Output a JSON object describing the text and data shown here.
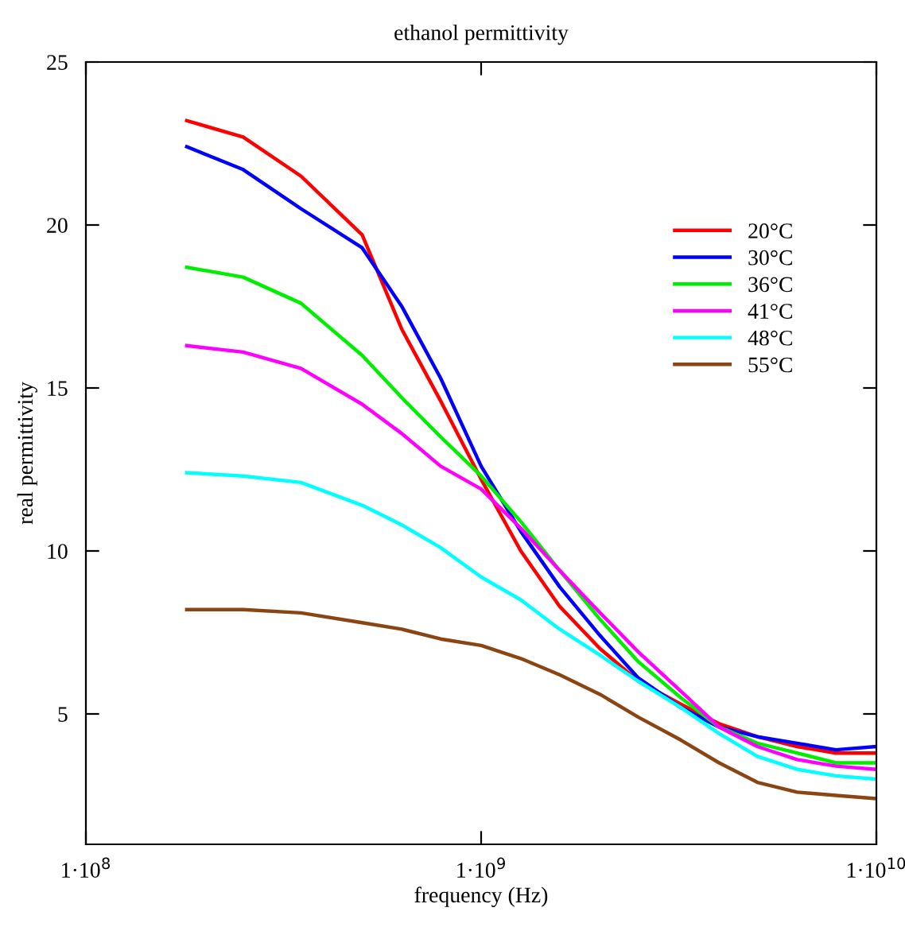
{
  "chart_data": {
    "type": "line",
    "title": "ethanol permittivity",
    "xlabel": "frequency (Hz)",
    "ylabel": "real permittivity",
    "log": "x",
    "xlim": [
      100000000,
      10000000000
    ],
    "ylim": [
      1,
      25
    ],
    "xticks": [
      {
        "value": 100000000,
        "label": "1·10$^{8}$"
      },
      {
        "value": 1000000000,
        "label": "1·10$^{9}$"
      },
      {
        "value": 10000000000,
        "label": "1·10$^{10}$"
      }
    ],
    "yticks": [
      5,
      10,
      15,
      20,
      25
    ],
    "grid": false,
    "legend": "top right",
    "line_style": "solid",
    "x": [
      180000000,
      250000000,
      350000000,
      500000000,
      630000000,
      790000000,
      1000000000,
      1260000000,
      1580000000,
      2000000000,
      2500000000,
      3200000000,
      4000000000,
      5000000000,
      6300000000,
      7900000000,
      10000000000
    ],
    "series": [
      {
        "name": "20°C",
        "color": "#ff0000",
        "values": [
          23.2,
          22.7,
          21.5,
          19.7,
          16.8,
          14.6,
          12.2,
          10.0,
          8.3,
          7.0,
          6.0,
          5.3,
          4.7,
          4.3,
          4.0,
          3.8,
          3.8
        ]
      },
      {
        "name": "30°C",
        "color": "#0000ff",
        "values": [
          22.4,
          21.7,
          20.5,
          19.3,
          17.5,
          15.3,
          12.6,
          10.6,
          8.9,
          7.4,
          6.1,
          5.2,
          4.6,
          4.3,
          4.1,
          3.9,
          4.0
        ]
      },
      {
        "name": "36°C",
        "color": "#00ee00",
        "values": [
          18.7,
          18.4,
          17.6,
          16.0,
          14.7,
          13.5,
          12.3,
          10.9,
          9.4,
          7.9,
          6.6,
          5.5,
          4.6,
          4.1,
          3.8,
          3.5,
          3.5
        ]
      },
      {
        "name": "41°C",
        "color": "#ff00ff",
        "values": [
          16.3,
          16.1,
          15.6,
          14.5,
          13.6,
          12.6,
          11.9,
          10.7,
          9.4,
          8.1,
          6.9,
          5.7,
          4.6,
          4.0,
          3.6,
          3.4,
          3.3
        ]
      },
      {
        "name": "48°C",
        "color": "#00ffff",
        "values": [
          12.4,
          12.3,
          12.1,
          11.4,
          10.8,
          10.1,
          9.2,
          8.5,
          7.6,
          6.8,
          6.0,
          5.2,
          4.4,
          3.7,
          3.3,
          3.1,
          3.0
        ]
      },
      {
        "name": "55°C",
        "color": "#8b4513",
        "values": [
          8.2,
          8.2,
          8.1,
          7.8,
          7.6,
          7.3,
          7.1,
          6.7,
          6.2,
          5.6,
          4.9,
          4.2,
          3.5,
          2.9,
          2.6,
          2.5,
          2.4
        ]
      }
    ]
  }
}
